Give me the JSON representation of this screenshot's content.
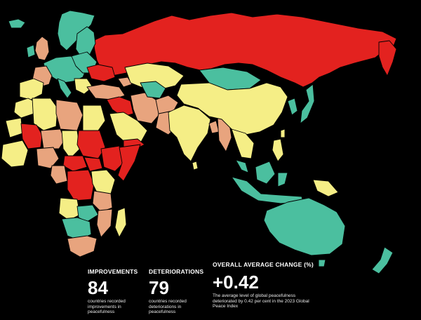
{
  "colors": {
    "background": "#000000",
    "red": "#e3221f",
    "salmon": "#e8a47e",
    "yellow": "#f5ee86",
    "teal": "#4bbf9f"
  },
  "stats": [
    {
      "label": "IMPROVEMENTS",
      "value": "84",
      "description": "countries recorded improvements in peacefulness"
    },
    {
      "label": "DETERIORATIONS",
      "value": "79",
      "description": "countries recorded deteriorations in peacefulness"
    },
    {
      "label": "OVERALL AVERAGE CHANGE (%)",
      "value": "+0.42",
      "description": "The average level of global peacefulness deteriorated by 0.42 per cent in the 2023 Global Peace Index"
    }
  ]
}
